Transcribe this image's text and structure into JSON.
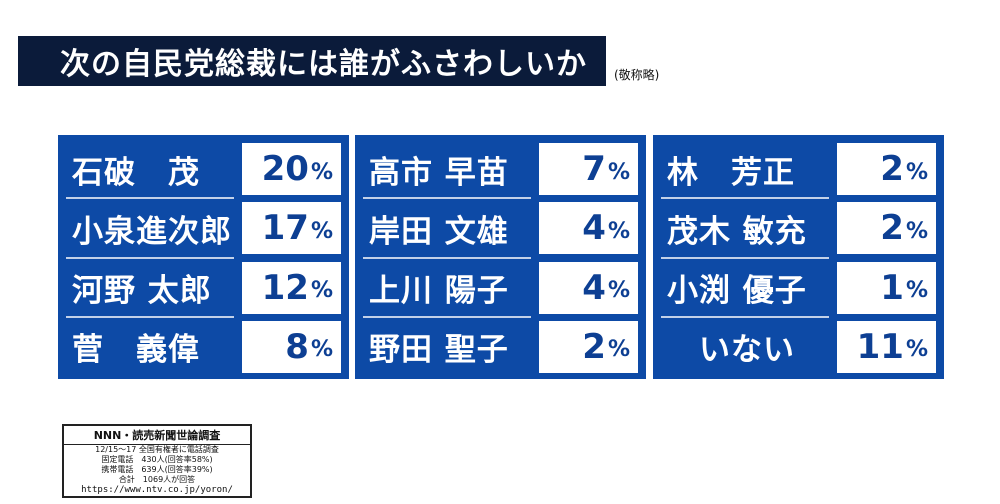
{
  "header": {
    "title": "次の自民党総裁には誰がふさわしいか",
    "note": "(敬称略)"
  },
  "colors": {
    "panel_blue": "#0d4aa6",
    "title_bg": "#0b1b3a",
    "value_text": "#0d3f93"
  },
  "chart_data": {
    "type": "table",
    "title": "次の自民党総裁には誰がふさわしいか",
    "unit": "%",
    "panels": [
      {
        "rows": [
          {
            "name": "石破　茂",
            "value": 20
          },
          {
            "name": "小泉進次郎",
            "value": 17
          },
          {
            "name": "河野 太郎",
            "value": 12
          },
          {
            "name": "菅　義偉",
            "value": 8
          }
        ]
      },
      {
        "rows": [
          {
            "name": "高市 早苗",
            "value": 7
          },
          {
            "name": "岸田 文雄",
            "value": 4
          },
          {
            "name": "上川 陽子",
            "value": 4
          },
          {
            "name": "野田 聖子",
            "value": 2
          }
        ]
      },
      {
        "rows": [
          {
            "name": "林　芳正",
            "value": 2
          },
          {
            "name": "茂木 敏充",
            "value": 2
          },
          {
            "name": "小渕 優子",
            "value": 1
          },
          {
            "name": "いない",
            "value": 11
          }
        ]
      }
    ]
  },
  "source": {
    "title": "NNN・読売新聞世論調査",
    "lines": [
      "12/15〜17 全国有権者に電話調査",
      "固定電話　430人(回答率58%)",
      "携帯電話　639人(回答率39%)",
      "合計　1069人が回答"
    ],
    "url": "https://www.ntv.co.jp/yoron/"
  }
}
